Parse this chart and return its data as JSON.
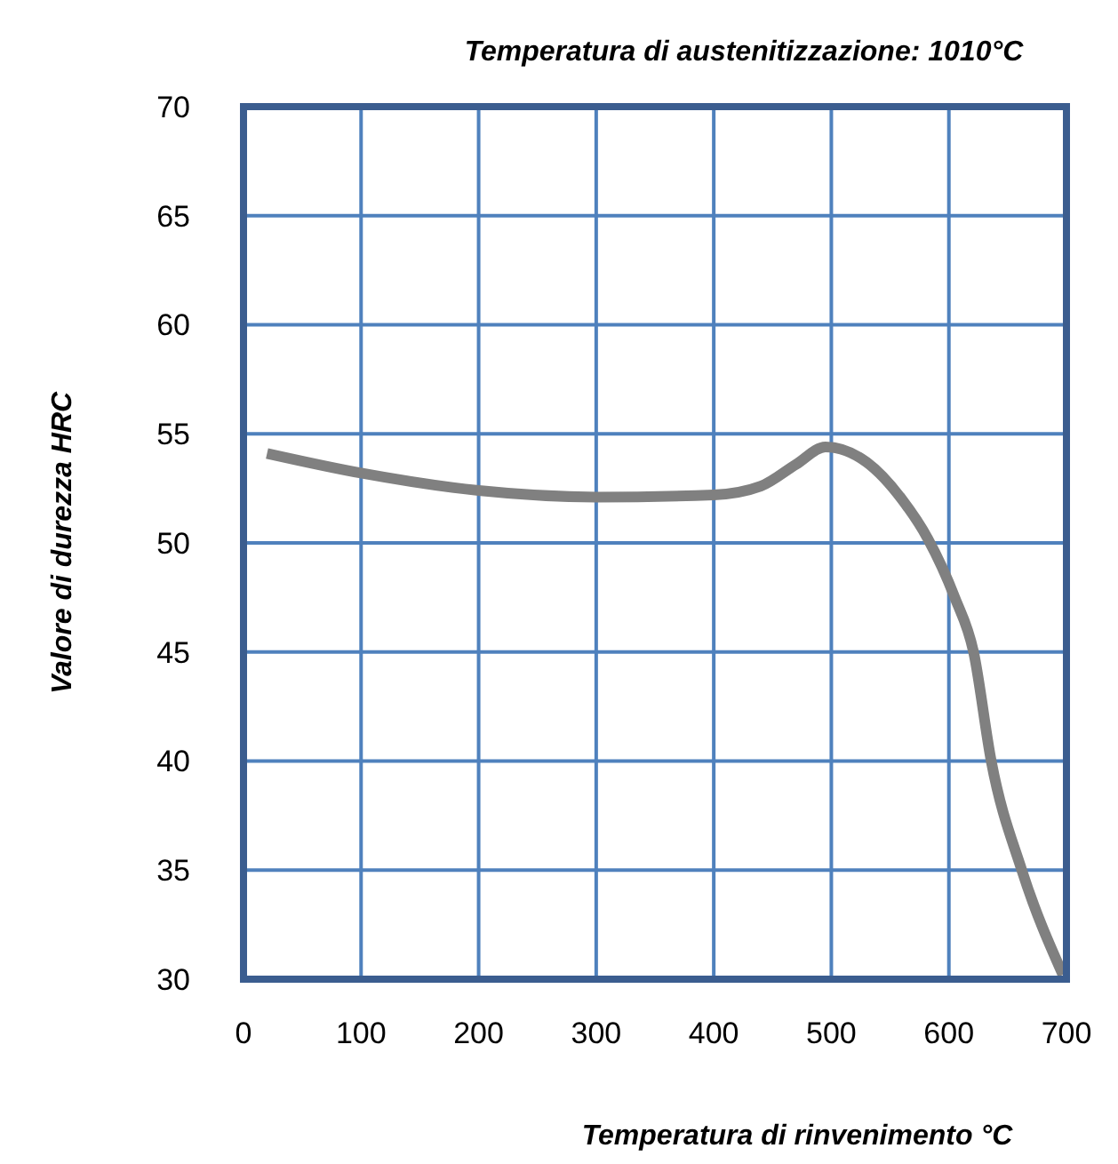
{
  "chart_data": {
    "type": "line",
    "title": "Temperatura di austenitizzazione: 1010°C",
    "xlabel": "Temperatura di rinvenimento °C",
    "ylabel": "Valore di durezza HRC",
    "x": [
      20,
      100,
      200,
      300,
      400,
      440,
      470,
      495,
      530,
      560,
      582,
      605,
      621,
      636,
      662,
      697
    ],
    "series": [
      {
        "color": "#808080",
        "values": [
          54.1,
          53.2,
          52.4,
          52.1,
          52.2,
          52.6,
          53.6,
          54.4,
          53.7,
          52,
          50.2,
          47.5,
          45,
          40,
          35,
          30.2
        ]
      }
    ],
    "xlim": [
      0,
      700
    ],
    "xticks": [
      0,
      100,
      200,
      300,
      400,
      500,
      600,
      700
    ],
    "ylim": [
      30,
      70
    ],
    "yticks": [
      30,
      35,
      40,
      45,
      50,
      55,
      60,
      65,
      70
    ],
    "grid": true,
    "marker": "none",
    "line_style": "solid"
  }
}
